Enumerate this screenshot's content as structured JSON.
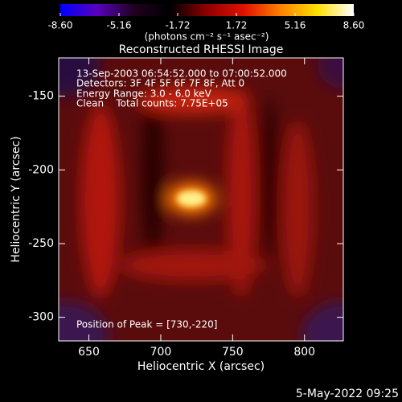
{
  "chart_data": {
    "type": "heatmap",
    "title": "Reconstructed RHESSI Image",
    "xlabel": "Heliocentric X (arcsec)",
    "ylabel": "Heliocentric Y (arcsec)",
    "xlim": [
      629,
      827
    ],
    "xticks": [
      650,
      700,
      750,
      800
    ],
    "ylim": [
      -316,
      -124
    ],
    "yticks": [
      -150,
      -200,
      -250,
      -300
    ],
    "annotations": [
      "13-Sep-2003 06:54:52.000 to 07:00:52.000",
      "Detectors: 3F 4F 5F 6F 7F 8F, Att 0",
      "Energy Range: 3.0 - 6.0 keV",
      "Clean    Total counts: 7.75E+05",
      "Position of Peak = [730,-220]"
    ],
    "colorbar": {
      "label": "(photons cm⁻² s⁻¹ asec⁻²)",
      "lim": [
        -8.6,
        8.6
      ],
      "ticks": [
        {
          "value": -8.6,
          "label": "-8.60"
        },
        -5.16,
        -1.72,
        1.72,
        5.16,
        {
          "value": 8.6,
          "label": "8.60"
        }
      ],
      "colors": [
        "#0000ff",
        "#5a00c0",
        "#200020",
        "#000000",
        "#900000",
        "#e01000",
        "#ff8000",
        "#ffe000",
        "#ffffff"
      ]
    }
  },
  "footer": {
    "timestamp": "5-May-2022 09:25"
  }
}
